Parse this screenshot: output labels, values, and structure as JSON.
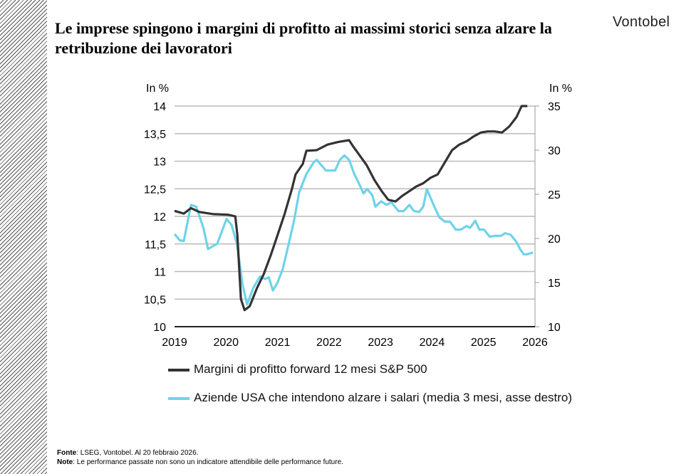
{
  "title": "Le imprese spingono i margini di profitto ai massimi storici senza alzare la retribuzione dei lavoratori",
  "logo": "Vontobel",
  "footer": {
    "source_label": "Fonte",
    "source": ": LSEG, Vontobel. Al 20 febbraio 2026.",
    "note_label": "Note",
    "note": ": Le performance passate non sono un indicatore attendibile delle performance future."
  },
  "chart_data": {
    "type": "line",
    "ylabel_left": "In %",
    "ylabel_right": "In %",
    "xlim": [
      2019,
      2026
    ],
    "ylim_left": [
      10,
      14
    ],
    "ylim_right": [
      10,
      35
    ],
    "x_ticks": [
      "2019",
      "2020",
      "2021",
      "2022",
      "2023",
      "2024",
      "2025",
      "2026"
    ],
    "y_ticks_left": [
      "10",
      "10,5",
      "11",
      "11,5",
      "12",
      "12,5",
      "13",
      "13,5",
      "14"
    ],
    "y_ticks_right": [
      "10",
      "15",
      "20",
      "25",
      "30",
      "35"
    ],
    "grid": true,
    "legend": "bottom",
    "colors": {
      "margins": "#333333",
      "wages": "#6fd3e8"
    },
    "series": [
      {
        "name": "Margini di profitto forward 12 mesi S&P 500",
        "axis": "left",
        "x": [
          2019.0,
          2019.18,
          2019.32,
          2019.48,
          2019.76,
          2020.04,
          2020.18,
          2020.22,
          2020.29,
          2020.36,
          2020.46,
          2020.6,
          2020.73,
          2020.87,
          2021.0,
          2021.14,
          2021.28,
          2021.35,
          2021.49,
          2021.56,
          2021.76,
          2021.97,
          2022.18,
          2022.39,
          2022.46,
          2022.6,
          2022.73,
          2022.88,
          2023.02,
          2023.15,
          2023.29,
          2023.42,
          2023.55,
          2023.69,
          2023.83,
          2023.97,
          2024.11,
          2024.25,
          2024.39,
          2024.53,
          2024.67,
          2024.81,
          2024.95,
          2025.08,
          2025.22,
          2025.36,
          2025.5,
          2025.64,
          2025.74,
          2025.85
        ],
        "values": [
          12.1,
          12.05,
          12.15,
          12.08,
          12.04,
          12.03,
          12.0,
          11.66,
          10.5,
          10.3,
          10.37,
          10.7,
          10.95,
          11.3,
          11.66,
          12.05,
          12.5,
          12.76,
          12.95,
          13.19,
          13.2,
          13.3,
          13.35,
          13.38,
          13.28,
          13.1,
          12.93,
          12.66,
          12.46,
          12.3,
          12.27,
          12.37,
          12.45,
          12.54,
          12.6,
          12.7,
          12.76,
          12.98,
          13.2,
          13.3,
          13.36,
          13.45,
          13.52,
          13.54,
          13.54,
          13.52,
          13.63,
          13.8,
          14.0,
          14.0
        ]
      },
      {
        "name": "Aziende USA che intendono alzare i salari (media 3 mesi, asse destro)",
        "axis": "right",
        "x": [
          2019.0,
          2019.1,
          2019.18,
          2019.32,
          2019.42,
          2019.56,
          2019.65,
          2019.83,
          2020.01,
          2020.11,
          2020.21,
          2020.32,
          2020.41,
          2020.53,
          2020.66,
          2020.76,
          2020.83,
          2020.91,
          2021.0,
          2021.1,
          2021.21,
          2021.32,
          2021.42,
          2021.56,
          2021.7,
          2021.76,
          2021.94,
          2022.12,
          2022.21,
          2022.3,
          2022.39,
          2022.49,
          2022.6,
          2022.67,
          2022.74,
          2022.84,
          2022.9,
          2023.01,
          2023.12,
          2023.21,
          2023.35,
          2023.45,
          2023.56,
          2023.65,
          2023.75,
          2023.83,
          2023.9,
          2024.0,
          2024.14,
          2024.25,
          2024.35,
          2024.46,
          2024.56,
          2024.67,
          2024.74,
          2024.84,
          2024.92,
          2025.01,
          2025.12,
          2025.23,
          2025.34,
          2025.42,
          2025.53,
          2025.64,
          2025.71,
          2025.78,
          2025.85,
          2025.96
        ],
        "values": [
          20.5,
          19.8,
          19.7,
          23.8,
          23.6,
          21.2,
          18.8,
          19.4,
          22.2,
          21.5,
          19.4,
          14.8,
          12.5,
          14.4,
          15.7,
          15.4,
          15.6,
          14.1,
          15.0,
          16.5,
          19.2,
          22.0,
          25.2,
          27.3,
          28.6,
          28.9,
          27.7,
          27.7,
          28.9,
          29.4,
          28.9,
          27.3,
          26.0,
          25.1,
          25.6,
          24.9,
          23.6,
          24.2,
          23.8,
          24.1,
          23.1,
          23.1,
          23.8,
          23.1,
          23.0,
          23.6,
          25.6,
          24.2,
          22.4,
          21.9,
          21.9,
          21.0,
          21.0,
          21.4,
          21.2,
          22.0,
          21.0,
          21.0,
          20.2,
          20.3,
          20.3,
          20.6,
          20.4,
          19.6,
          18.8,
          18.2,
          18.2,
          18.4
        ]
      }
    ]
  }
}
